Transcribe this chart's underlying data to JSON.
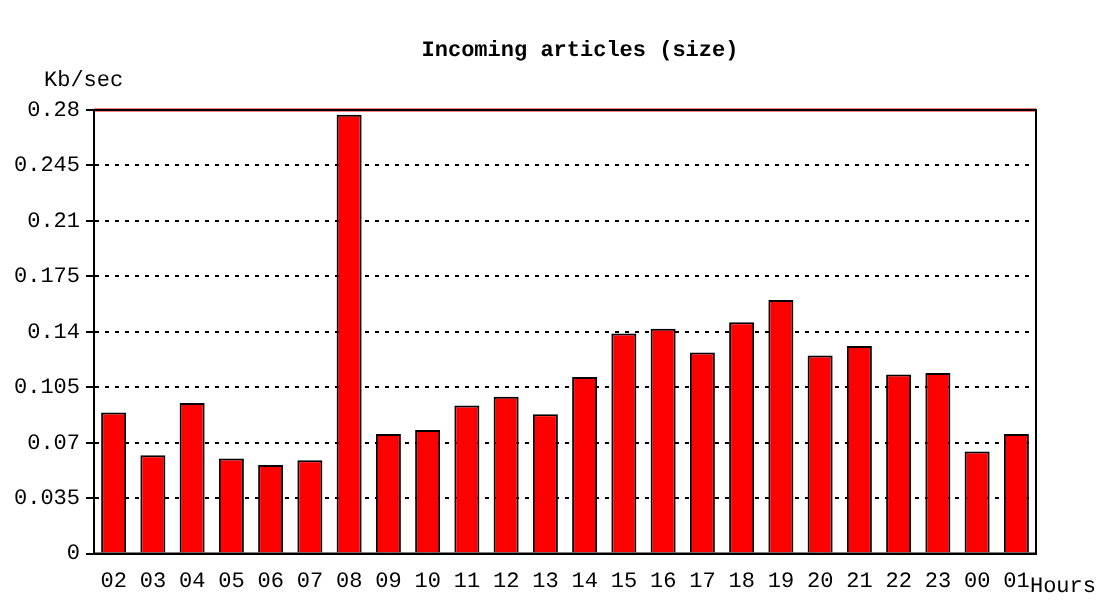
{
  "chart_data": {
    "type": "bar",
    "title": "Incoming articles (size)",
    "xlabel": "Hours",
    "ylabel": "Kb/sec",
    "categories": [
      "02",
      "03",
      "04",
      "05",
      "06",
      "07",
      "08",
      "09",
      "10",
      "11",
      "12",
      "13",
      "14",
      "15",
      "16",
      "17",
      "18",
      "19",
      "20",
      "21",
      "22",
      "23",
      "00",
      "01"
    ],
    "series": [
      {
        "color": "#ff0000",
        "values": [
          0.089,
          0.062,
          0.095,
          0.06,
          0.056,
          0.059,
          0.277,
          0.0755,
          0.078,
          0.0935,
          0.099,
          0.088,
          0.1115,
          0.139,
          0.142,
          0.127,
          0.146,
          0.16,
          0.125,
          0.131,
          0.113,
          0.114,
          0.0645,
          0.0755
        ]
      }
    ],
    "ylim": [
      0,
      0.28
    ],
    "yticks": [
      0,
      0.035,
      0.07,
      0.105,
      0.14,
      0.175,
      0.21,
      0.245,
      0.28
    ],
    "ref_lines": [
      {
        "axis": "y",
        "value": 0.28,
        "color": "#ff0000"
      }
    ],
    "grid": "y",
    "legend": false
  }
}
